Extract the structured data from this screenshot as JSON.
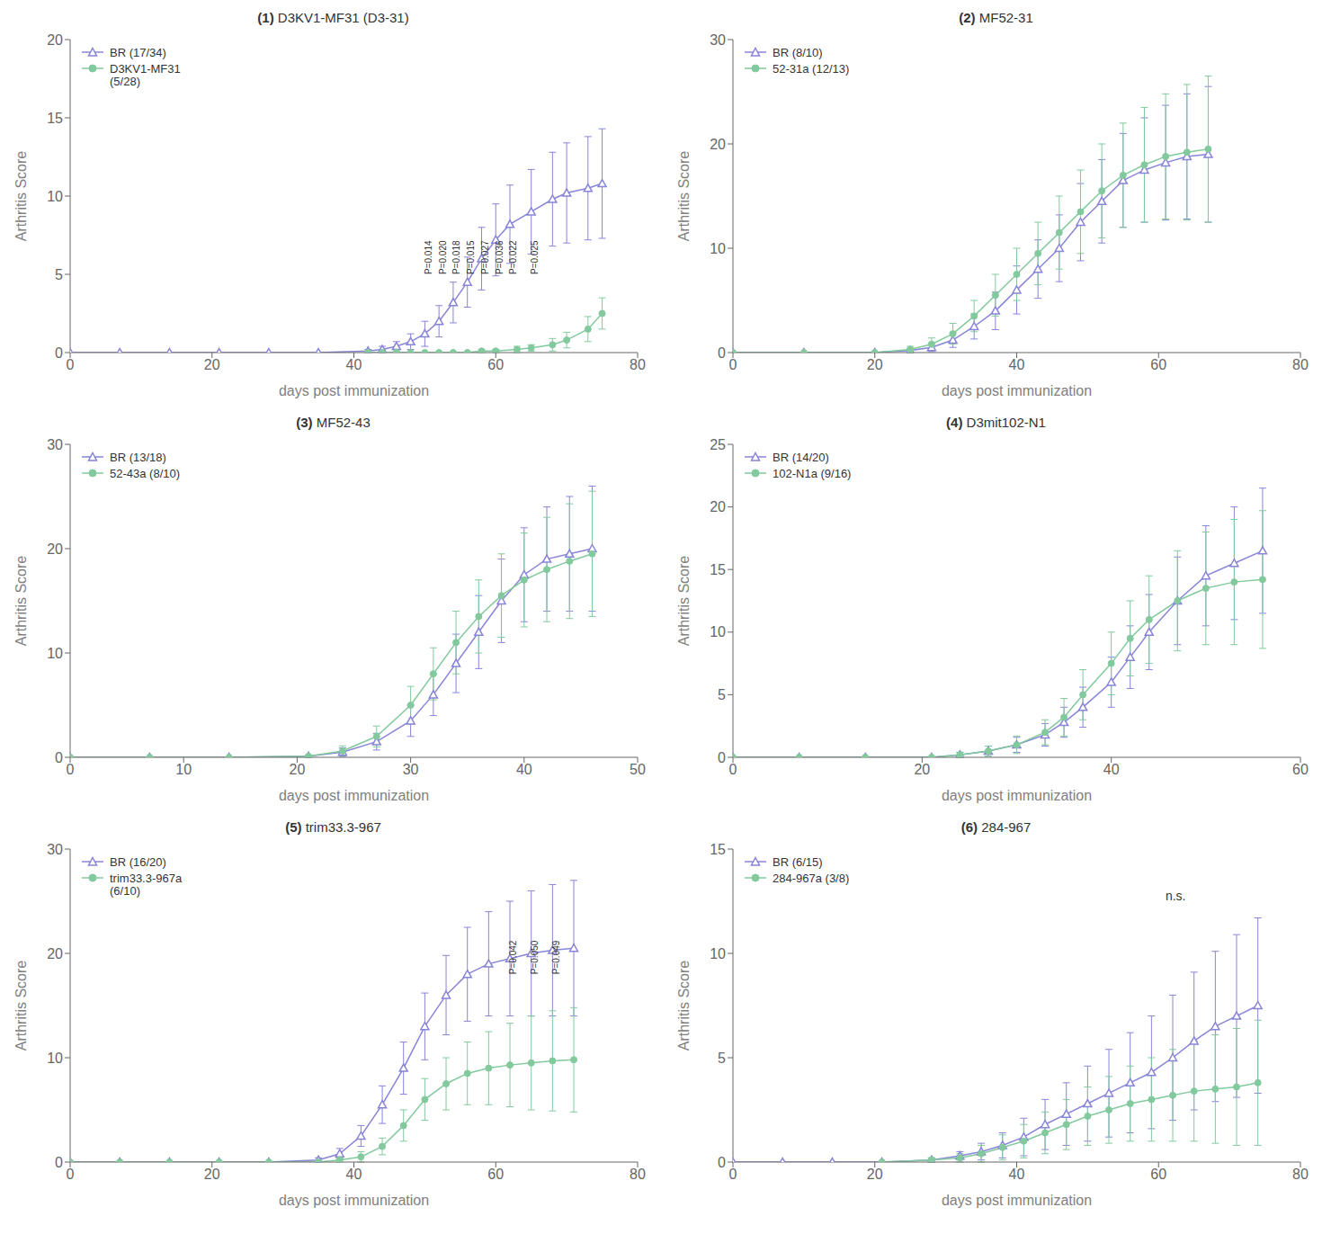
{
  "chart_data": [
    {
      "type": "line",
      "title": "(1) D3KV1-MF31 (D3-31)",
      "x_label": "days post immunization",
      "y_label": "Arthritis Score",
      "xlim": [
        0,
        80
      ],
      "ylim": [
        0,
        20
      ],
      "xticks": [
        0,
        20,
        40,
        60,
        80
      ],
      "yticks": [
        0,
        5,
        10,
        15,
        20
      ],
      "grid": false,
      "legend": "upper left",
      "series": [
        {
          "name": "BR (17/34)",
          "color": "#8884d8",
          "marker": "triangle",
          "x": [
            0,
            7,
            14,
            21,
            28,
            35,
            42,
            44,
            46,
            48,
            50,
            52,
            54,
            56,
            58,
            60,
            62,
            65,
            68,
            70,
            73,
            75
          ],
          "values": [
            0,
            0,
            0,
            0,
            0,
            0,
            0.1,
            0.2,
            0.4,
            0.7,
            1.2,
            2.0,
            3.2,
            4.5,
            6.0,
            7.2,
            8.2,
            9.0,
            9.8,
            10.2,
            10.5,
            10.8
          ],
          "error": [
            0,
            0,
            0,
            0,
            0,
            0,
            0.1,
            0.2,
            0.3,
            0.5,
            0.8,
            1.0,
            1.3,
            1.6,
            2.0,
            2.3,
            2.5,
            2.7,
            3.0,
            3.2,
            3.3,
            3.5
          ]
        },
        {
          "name": "D3KV1-MF31\n(5/28)",
          "color": "#82ca9d",
          "marker": "circle",
          "x": [
            42,
            44,
            46,
            48,
            50,
            52,
            54,
            56,
            58,
            60,
            63,
            65,
            68,
            70,
            73,
            75
          ],
          "values": [
            0,
            0,
            0,
            0,
            0,
            0,
            0,
            0,
            0.1,
            0.1,
            0.2,
            0.3,
            0.5,
            0.8,
            1.5,
            2.5
          ],
          "error": [
            0,
            0,
            0,
            0,
            0,
            0,
            0,
            0,
            0.1,
            0.1,
            0.2,
            0.2,
            0.4,
            0.5,
            0.8,
            1.0
          ]
        }
      ],
      "annotations": [
        {
          "text": "P=0.014",
          "x": 50.5,
          "y": 5.0
        },
        {
          "text": "P=0.020",
          "x": 52.5,
          "y": 5.0
        },
        {
          "text": "P=0.018",
          "x": 54.5,
          "y": 5.0
        },
        {
          "text": "P=0.015",
          "x": 56.5,
          "y": 5.0
        },
        {
          "text": "P=0.027",
          "x": 58.5,
          "y": 5.0
        },
        {
          "text": "P=0.036",
          "x": 60.5,
          "y": 5.0
        },
        {
          "text": "P=0.022",
          "x": 62.5,
          "y": 5.0
        },
        {
          "text": "P=0.025",
          "x": 65.5,
          "y": 5.0
        }
      ]
    },
    {
      "type": "line",
      "title": "(2) MF52-31",
      "x_label": "days post immunization",
      "y_label": "Arthritis Score",
      "xlim": [
        0,
        80
      ],
      "ylim": [
        0,
        30
      ],
      "xticks": [
        0,
        20,
        40,
        60,
        80
      ],
      "yticks": [
        0,
        10,
        20,
        30
      ],
      "grid": false,
      "legend": "upper left",
      "series": [
        {
          "name": "BR (8/10)",
          "color": "#8884d8",
          "marker": "triangle",
          "x": [
            0,
            10,
            20,
            25,
            28,
            31,
            34,
            37,
            40,
            43,
            46,
            49,
            52,
            55,
            58,
            61,
            64,
            67
          ],
          "values": [
            0,
            0,
            0,
            0.2,
            0.5,
            1.2,
            2.5,
            4.0,
            6.0,
            8.0,
            10.0,
            12.5,
            14.5,
            16.5,
            17.5,
            18.2,
            18.8,
            19.0
          ],
          "error": [
            0,
            0,
            0,
            0.2,
            0.4,
            0.7,
            1.2,
            1.8,
            2.3,
            2.8,
            3.2,
            3.7,
            4.0,
            4.5,
            5.0,
            5.5,
            6.0,
            6.5
          ]
        },
        {
          "name": "52-31a (12/13)",
          "color": "#82ca9d",
          "marker": "circle",
          "x": [
            0,
            10,
            20,
            25,
            28,
            31,
            34,
            37,
            40,
            43,
            46,
            49,
            52,
            55,
            58,
            61,
            64,
            67
          ],
          "values": [
            0,
            0,
            0,
            0.3,
            0.8,
            1.8,
            3.5,
            5.5,
            7.5,
            9.5,
            11.5,
            13.5,
            15.5,
            17.0,
            18.0,
            18.8,
            19.2,
            19.5
          ],
          "error": [
            0,
            0,
            0,
            0.3,
            0.6,
            1.0,
            1.5,
            2.0,
            2.5,
            3.0,
            3.5,
            4.0,
            4.5,
            5.0,
            5.5,
            6.0,
            6.5,
            7.0
          ]
        }
      ]
    },
    {
      "type": "line",
      "title": "(3) MF52-43",
      "x_label": "days post immunization",
      "y_label": "Arthritis Score",
      "xlim": [
        0,
        50
      ],
      "ylim": [
        0,
        30
      ],
      "xticks": [
        0,
        10,
        20,
        30,
        40,
        50
      ],
      "yticks": [
        0,
        10,
        20,
        30
      ],
      "grid": false,
      "legend": "upper left",
      "series": [
        {
          "name": "BR (13/18)",
          "color": "#8884d8",
          "marker": "triangle",
          "x": [
            0,
            7,
            14,
            21,
            24,
            27,
            30,
            32,
            34,
            36,
            38,
            40,
            42,
            44,
            46
          ],
          "values": [
            0,
            0,
            0,
            0.1,
            0.5,
            1.5,
            3.5,
            6.0,
            9.0,
            12.0,
            15.0,
            17.5,
            19.0,
            19.5,
            20.0
          ],
          "error": [
            0,
            0,
            0,
            0.1,
            0.4,
            0.8,
            1.5,
            2.0,
            2.8,
            3.5,
            4.0,
            4.5,
            5.0,
            5.5,
            6.0
          ]
        },
        {
          "name": "52-43a (8/10)",
          "color": "#82ca9d",
          "marker": "circle",
          "x": [
            0,
            7,
            14,
            21,
            24,
            27,
            30,
            32,
            34,
            36,
            38,
            40,
            42,
            44,
            46
          ],
          "values": [
            0,
            0,
            0,
            0.1,
            0.6,
            2.0,
            5.0,
            8.0,
            11.0,
            13.5,
            15.5,
            17.0,
            18.0,
            18.8,
            19.5
          ],
          "error": [
            0,
            0,
            0,
            0.1,
            0.5,
            1.0,
            1.8,
            2.5,
            3.0,
            3.5,
            4.0,
            4.5,
            5.0,
            5.5,
            6.0
          ]
        }
      ]
    },
    {
      "type": "line",
      "title": "(4) D3mit102-N1",
      "x_label": "days post immunization",
      "y_label": "Arthritis Score",
      "xlim": [
        0,
        60
      ],
      "ylim": [
        0,
        25
      ],
      "xticks": [
        0,
        20,
        40,
        60
      ],
      "yticks": [
        0,
        5,
        10,
        15,
        20,
        25
      ],
      "grid": false,
      "legend": "upper left",
      "series": [
        {
          "name": "BR (14/20)",
          "color": "#8884d8",
          "marker": "triangle",
          "x": [
            0,
            7,
            14,
            21,
            24,
            27,
            30,
            33,
            35,
            37,
            40,
            42,
            44,
            47,
            50,
            53,
            56
          ],
          "values": [
            0,
            0,
            0,
            0,
            0.2,
            0.5,
            1.0,
            1.8,
            2.8,
            4.0,
            6.0,
            8.0,
            10.0,
            12.5,
            14.5,
            15.5,
            16.5
          ],
          "error": [
            0,
            0,
            0,
            0,
            0.2,
            0.4,
            0.6,
            0.9,
            1.2,
            1.6,
            2.0,
            2.5,
            3.0,
            3.5,
            4.0,
            4.5,
            5.0
          ]
        },
        {
          "name": "102-N1a (9/16)",
          "color": "#82ca9d",
          "marker": "circle",
          "x": [
            0,
            7,
            14,
            21,
            24,
            27,
            30,
            33,
            35,
            37,
            40,
            42,
            44,
            47,
            50,
            53,
            56
          ],
          "values": [
            0,
            0,
            0,
            0,
            0.2,
            0.5,
            1.0,
            2.0,
            3.2,
            5.0,
            7.5,
            9.5,
            11.0,
            12.5,
            13.5,
            14.0,
            14.2
          ],
          "error": [
            0,
            0,
            0,
            0,
            0.2,
            0.4,
            0.7,
            1.0,
            1.5,
            2.0,
            2.5,
            3.0,
            3.5,
            4.0,
            4.5,
            5.0,
            5.5
          ]
        }
      ]
    },
    {
      "type": "line",
      "title": "(5) trim33.3-967",
      "x_label": "days post immunization",
      "y_label": "Arthritis Score",
      "xlim": [
        0,
        80
      ],
      "ylim": [
        0,
        30
      ],
      "xticks": [
        0,
        20,
        40,
        60,
        80
      ],
      "yticks": [
        0,
        10,
        20,
        30
      ],
      "grid": false,
      "legend": "upper left",
      "series": [
        {
          "name": "BR (16/20)",
          "color": "#8884d8",
          "marker": "triangle",
          "x": [
            0,
            7,
            14,
            21,
            28,
            35,
            38,
            41,
            44,
            47,
            50,
            53,
            56,
            59,
            62,
            65,
            68,
            71
          ],
          "values": [
            0,
            0,
            0,
            0,
            0,
            0.2,
            0.8,
            2.5,
            5.5,
            9.0,
            13.0,
            16.0,
            18.0,
            19.0,
            19.5,
            20.0,
            20.3,
            20.5
          ],
          "error": [
            0,
            0,
            0,
            0,
            0,
            0.2,
            0.5,
            1.0,
            1.8,
            2.5,
            3.2,
            3.8,
            4.5,
            5.0,
            5.5,
            6.0,
            6.3,
            6.5
          ]
        },
        {
          "name": "trim33.3-967a\n(6/10)",
          "color": "#82ca9d",
          "marker": "circle",
          "x": [
            0,
            7,
            14,
            21,
            28,
            35,
            38,
            41,
            44,
            47,
            50,
            53,
            56,
            59,
            62,
            65,
            68,
            71
          ],
          "values": [
            0,
            0,
            0,
            0,
            0,
            0,
            0.2,
            0.5,
            1.5,
            3.5,
            6.0,
            7.5,
            8.5,
            9.0,
            9.3,
            9.5,
            9.7,
            9.8
          ],
          "error": [
            0,
            0,
            0,
            0,
            0,
            0,
            0.2,
            0.5,
            0.8,
            1.5,
            2.0,
            2.5,
            3.0,
            3.5,
            4.0,
            4.5,
            4.8,
            5.0
          ]
        }
      ],
      "annotations": [
        {
          "text": "P=0.042",
          "x": 62.5,
          "y": 18.0
        },
        {
          "text": "P=0.050",
          "x": 65.5,
          "y": 18.0
        },
        {
          "text": "P=0.049",
          "x": 68.5,
          "y": 18.0
        }
      ]
    },
    {
      "type": "line",
      "title": "(6) 284-967",
      "x_label": "days post immunization",
      "y_label": "Arthritis Score",
      "xlim": [
        0,
        80
      ],
      "ylim": [
        0,
        15
      ],
      "xticks": [
        0,
        20,
        40,
        60,
        80
      ],
      "yticks": [
        0,
        5,
        10,
        15
      ],
      "grid": false,
      "legend": "upper left",
      "series": [
        {
          "name": "BR (6/15)",
          "color": "#8884d8",
          "marker": "triangle",
          "x": [
            0,
            7,
            14,
            21,
            28,
            32,
            35,
            38,
            41,
            44,
            47,
            50,
            53,
            56,
            59,
            62,
            65,
            68,
            71,
            74
          ],
          "values": [
            0,
            0,
            0,
            0,
            0.1,
            0.3,
            0.5,
            0.8,
            1.2,
            1.8,
            2.3,
            2.8,
            3.3,
            3.8,
            4.3,
            5.0,
            5.8,
            6.5,
            7.0,
            7.5
          ],
          "error": [
            0,
            0,
            0,
            0,
            0.1,
            0.2,
            0.4,
            0.6,
            0.9,
            1.2,
            1.5,
            1.8,
            2.1,
            2.4,
            2.7,
            3.0,
            3.3,
            3.6,
            3.9,
            4.2
          ]
        },
        {
          "name": "284-967a (3/8)",
          "color": "#82ca9d",
          "marker": "circle",
          "x": [
            21,
            28,
            32,
            35,
            38,
            41,
            44,
            47,
            50,
            53,
            56,
            59,
            62,
            65,
            68,
            71,
            74
          ],
          "values": [
            0,
            0.1,
            0.2,
            0.4,
            0.7,
            1.0,
            1.4,
            1.8,
            2.2,
            2.5,
            2.8,
            3.0,
            3.2,
            3.4,
            3.5,
            3.6,
            3.8
          ],
          "error": [
            0,
            0.1,
            0.2,
            0.4,
            0.6,
            0.8,
            1.0,
            1.2,
            1.4,
            1.6,
            1.8,
            2.0,
            2.2,
            2.4,
            2.6,
            2.8,
            3.0
          ]
        }
      ],
      "annotations": [
        {
          "text": "n.s.",
          "x": 62.4,
          "y": 12.75
        }
      ]
    }
  ]
}
